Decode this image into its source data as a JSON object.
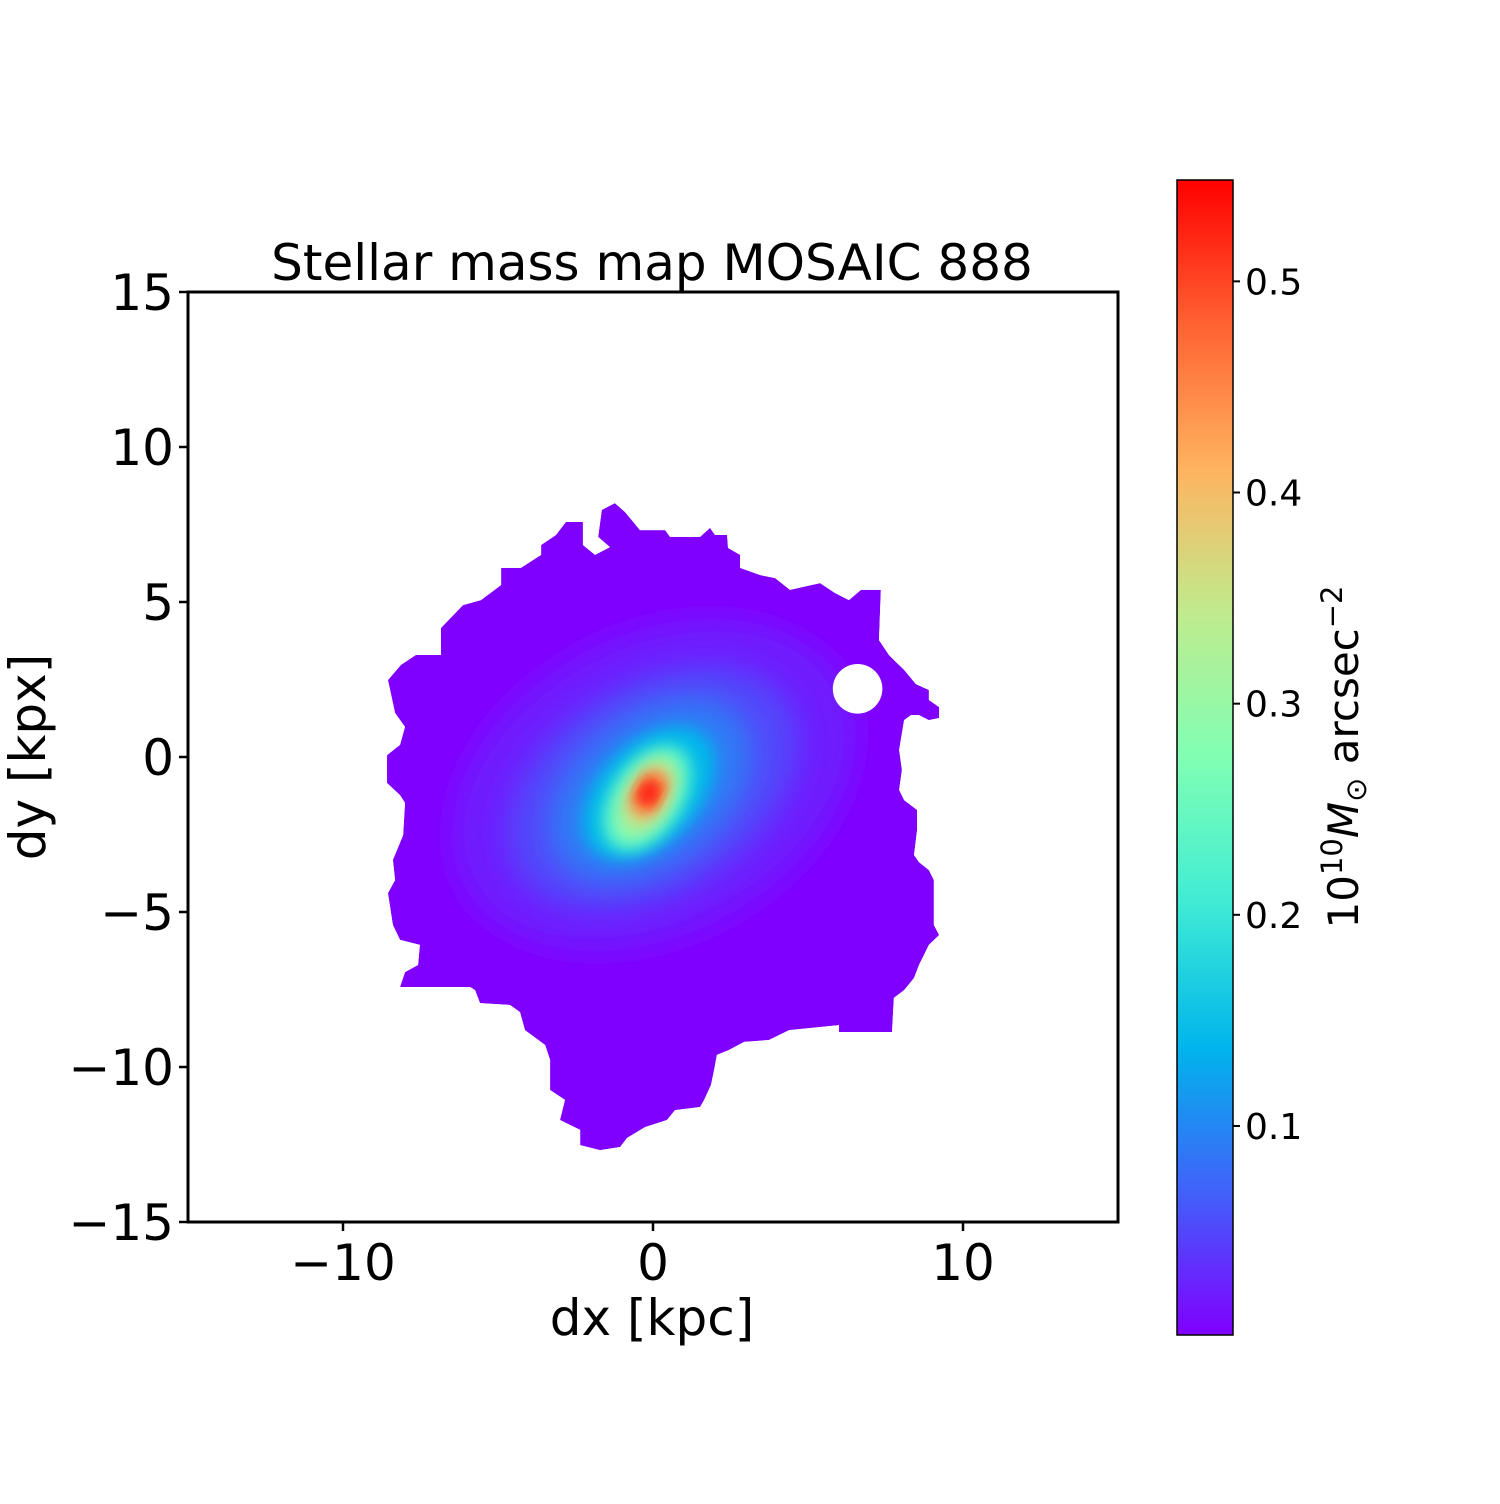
{
  "chart_data": {
    "type": "heatmap",
    "title": "Stellar mass map MOSAIC 888",
    "xlabel": "dx [kpc]",
    "ylabel": "dy [kpx]",
    "xlim": [
      -15,
      15
    ],
    "ylim": [
      -15,
      15
    ],
    "xticks": [
      -10,
      0,
      10
    ],
    "xtick_labels": [
      "−10",
      "0",
      "10"
    ],
    "yticks": [
      15,
      10,
      5,
      0,
      -5,
      -10,
      -15
    ],
    "ytick_labels": [
      "15",
      "10",
      "5",
      "0",
      "−5",
      "−10",
      "−15"
    ],
    "grid": false,
    "colormap": "rainbow",
    "colorbar": {
      "label_base": "10",
      "label_exp": "10",
      "label_symbol": "M",
      "label_sub": "⊙",
      "label_unit": " arcsec",
      "label_unit_exp": "−2",
      "range": [
        0.001,
        0.548
      ],
      "ticks": [
        0.1,
        0.2,
        0.3,
        0.4,
        0.5
      ],
      "tick_labels": [
        "0.1",
        "0.2",
        "0.3",
        "0.4",
        "0.5"
      ],
      "stops": [
        "#8000ff",
        "#4062fa",
        "#00b5eb",
        "#40ecd4",
        "#80ffb4",
        "#c0eb8d",
        "#ffb360",
        "#ff6232",
        "#ff0000"
      ]
    },
    "peak": {
      "x": -0.13,
      "y": -1.16,
      "value": 0.548
    },
    "background_value": 0.001,
    "hole": {
      "x": 6.6,
      "y": 2.2,
      "r": 0.8
    },
    "mask_outline_kpc": [
      [
        -8.55,
        2.48
      ],
      [
        -8.13,
        2.97
      ],
      [
        -7.65,
        3.29
      ],
      [
        -6.84,
        3.29
      ],
      [
        -6.84,
        4.16
      ],
      [
        -6.13,
        4.9
      ],
      [
        -5.55,
        5.06
      ],
      [
        -4.9,
        5.55
      ],
      [
        -4.9,
        6.1
      ],
      [
        -4.26,
        6.1
      ],
      [
        -3.61,
        6.52
      ],
      [
        -3.61,
        6.84
      ],
      [
        -3.13,
        7.16
      ],
      [
        -2.81,
        7.58
      ],
      [
        -2.26,
        7.58
      ],
      [
        -2.26,
        6.84
      ],
      [
        -1.87,
        6.52
      ],
      [
        -1.39,
        6.77
      ],
      [
        -1.77,
        7.1
      ],
      [
        -1.65,
        7.97
      ],
      [
        -1.23,
        8.19
      ],
      [
        -0.9,
        7.9
      ],
      [
        -0.42,
        7.32
      ],
      [
        0.39,
        7.32
      ],
      [
        0.55,
        7.1
      ],
      [
        1.52,
        7.1
      ],
      [
        1.84,
        7.39
      ],
      [
        2.0,
        7.16
      ],
      [
        2.39,
        7.16
      ],
      [
        2.42,
        6.74
      ],
      [
        2.81,
        6.52
      ],
      [
        2.81,
        6.1
      ],
      [
        3.45,
        5.87
      ],
      [
        3.94,
        5.77
      ],
      [
        4.42,
        5.39
      ],
      [
        5.39,
        5.61
      ],
      [
        5.87,
        5.29
      ],
      [
        6.32,
        5.06
      ],
      [
        6.71,
        5.39
      ],
      [
        7.35,
        5.39
      ],
      [
        7.29,
        3.77
      ],
      [
        7.61,
        3.29
      ],
      [
        7.84,
        3.06
      ],
      [
        8.1,
        2.81
      ],
      [
        8.48,
        2.35
      ],
      [
        8.9,
        2.16
      ],
      [
        8.9,
        1.84
      ],
      [
        9.23,
        1.61
      ],
      [
        9.23,
        1.26
      ],
      [
        8.9,
        1.19
      ],
      [
        8.58,
        1.35
      ],
      [
        8.32,
        1.35
      ],
      [
        8.1,
        1.19
      ],
      [
        7.94,
        0.23
      ],
      [
        8.03,
        -0.42
      ],
      [
        7.94,
        -1.06
      ],
      [
        8.1,
        -1.39
      ],
      [
        8.52,
        -1.71
      ],
      [
        8.52,
        -2.35
      ],
      [
        8.42,
        -3.16
      ],
      [
        8.58,
        -3.39
      ],
      [
        8.9,
        -3.65
      ],
      [
        9.06,
        -3.97
      ],
      [
        9.06,
        -5.42
      ],
      [
        9.23,
        -5.74
      ],
      [
        8.9,
        -6.06
      ],
      [
        8.58,
        -6.71
      ],
      [
        8.42,
        -7.13
      ],
      [
        8.1,
        -7.52
      ],
      [
        7.77,
        -7.77
      ],
      [
        7.71,
        -8.87
      ],
      [
        6.0,
        -8.87
      ],
      [
        6.0,
        -8.65
      ],
      [
        4.39,
        -8.81
      ],
      [
        3.74,
        -9.13
      ],
      [
        2.94,
        -9.19
      ],
      [
        2.45,
        -9.45
      ],
      [
        2.06,
        -9.61
      ],
      [
        1.97,
        -10.1
      ],
      [
        1.87,
        -10.58
      ],
      [
        1.65,
        -11.06
      ],
      [
        1.52,
        -11.29
      ],
      [
        0.71,
        -11.39
      ],
      [
        0.45,
        -11.71
      ],
      [
        -0.26,
        -11.94
      ],
      [
        -0.84,
        -12.29
      ],
      [
        -1.06,
        -12.58
      ],
      [
        -1.71,
        -12.68
      ],
      [
        -2.35,
        -12.52
      ],
      [
        -2.35,
        -12.03
      ],
      [
        -3.0,
        -11.71
      ],
      [
        -2.84,
        -11.06
      ],
      [
        -3.32,
        -10.74
      ],
      [
        -3.32,
        -9.77
      ],
      [
        -3.48,
        -9.29
      ],
      [
        -4.13,
        -8.81
      ],
      [
        -4.29,
        -8.23
      ],
      [
        -4.61,
        -8.0
      ],
      [
        -5.58,
        -7.94
      ],
      [
        -5.74,
        -7.52
      ],
      [
        -5.9,
        -7.42
      ],
      [
        -8.16,
        -7.42
      ],
      [
        -8.0,
        -6.94
      ],
      [
        -7.58,
        -6.71
      ],
      [
        -7.52,
        -6.06
      ],
      [
        -8.16,
        -5.9
      ],
      [
        -8.39,
        -5.42
      ],
      [
        -8.55,
        -4.39
      ],
      [
        -8.32,
        -3.97
      ],
      [
        -8.39,
        -3.32
      ],
      [
        -8.06,
        -2.52
      ],
      [
        -8.0,
        -1.48
      ],
      [
        -8.16,
        -1.23
      ],
      [
        -8.58,
        -0.84
      ],
      [
        -8.58,
        0.06
      ],
      [
        -8.16,
        0.39
      ],
      [
        -8.0,
        0.97
      ],
      [
        -8.32,
        1.42
      ],
      [
        -8.48,
        2.16
      ]
    ]
  }
}
